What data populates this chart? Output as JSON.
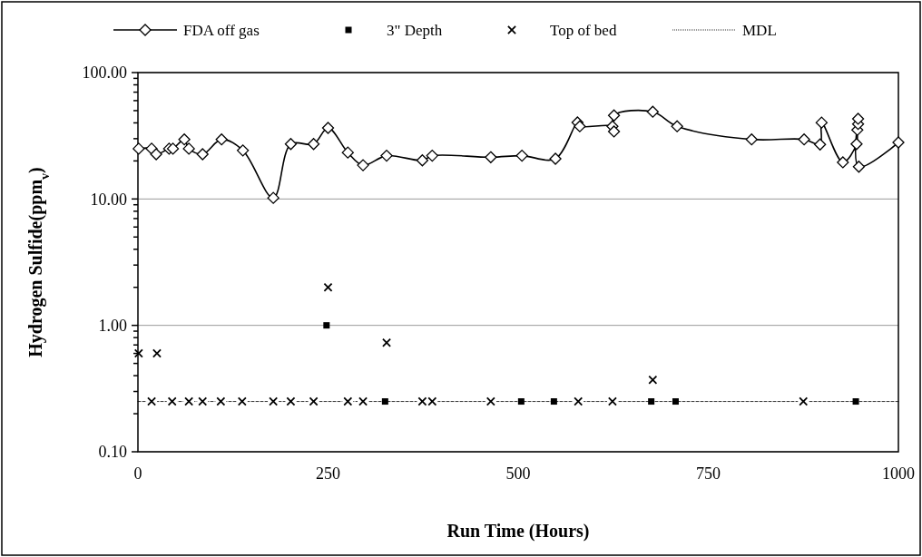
{
  "chart_data": {
    "type": "scatter",
    "xlabel": "Run Time (Hours)",
    "ylabel": "Hydrogen Sulfide(ppm$_{v}$)",
    "log": "y",
    "grid": "y",
    "legend": "top",
    "xlim": [
      0,
      1000
    ],
    "xticks": [
      0,
      250,
      500,
      750,
      1000
    ],
    "ylim": [
      0.1,
      100
    ],
    "yticks": [
      {
        "value": 0.1,
        "label": "0.10"
      },
      {
        "value": 0.2,
        "label": null
      },
      {
        "value": 0.3,
        "label": null
      },
      {
        "value": 0.4,
        "label": null
      },
      {
        "value": 0.5,
        "label": null
      },
      {
        "value": 0.6,
        "label": null
      },
      {
        "value": 0.7,
        "label": null
      },
      {
        "value": 0.8,
        "label": null
      },
      {
        "value": 0.9,
        "label": null
      },
      {
        "value": 1,
        "label": "1.00"
      },
      {
        "value": 2,
        "label": null
      },
      {
        "value": 3,
        "label": null
      },
      {
        "value": 4,
        "label": null
      },
      {
        "value": 5,
        "label": null
      },
      {
        "value": 6,
        "label": null
      },
      {
        "value": 7,
        "label": null
      },
      {
        "value": 8,
        "label": null
      },
      {
        "value": 9,
        "label": null
      },
      {
        "value": 10,
        "label": "10.00"
      },
      {
        "value": 20,
        "label": null
      },
      {
        "value": 30,
        "label": null
      },
      {
        "value": 40,
        "label": null
      },
      {
        "value": 50,
        "label": null
      },
      {
        "value": 60,
        "label": null
      },
      {
        "value": 70,
        "label": null
      },
      {
        "value": 80,
        "label": null
      },
      {
        "value": 90,
        "label": null
      },
      {
        "value": 100,
        "label": "100.00"
      }
    ],
    "series": [
      {
        "name": "FDA off gas",
        "type": "line",
        "marker": "diamond",
        "line_style": "solid",
        "color": "#000000",
        "x": [
          1,
          18,
          24,
          41,
          46,
          61,
          67,
          85,
          110,
          138,
          178,
          201,
          231,
          250,
          276,
          296,
          327,
          374,
          387,
          464,
          505,
          549,
          578,
          581,
          624,
          626,
          626,
          677,
          709,
          807,
          876,
          897,
          899,
          927,
          945,
          946,
          947,
          947,
          948,
          1000
        ],
        "values": [
          25,
          25,
          22.6,
          25,
          25,
          29.6,
          25,
          22.6,
          29.6,
          24.2,
          10.2,
          27.2,
          27.2,
          36.5,
          23.3,
          18.5,
          22,
          20.2,
          22,
          21.4,
          22,
          20.8,
          40.3,
          37.6,
          37.6,
          34.2,
          45.8,
          49,
          37.6,
          29.6,
          29.6,
          27,
          40.2,
          19.5,
          27.2,
          35.2,
          39.2,
          43.1,
          18,
          28
        ]
      },
      {
        "name": "3\" Depth",
        "marker": "square",
        "color": "#000000",
        "x": [
          248,
          325,
          504,
          547,
          675,
          707,
          944
        ],
        "values": [
          1.0,
          0.25,
          0.25,
          0.25,
          0.25,
          0.25,
          0.25
        ]
      },
      {
        "name": "Top of bed",
        "marker": "cross",
        "color": "#000000",
        "x": [
          1,
          25,
          18,
          45,
          67,
          85,
          109,
          137,
          178,
          201,
          231,
          250,
          276,
          296,
          327,
          374,
          387,
          464,
          579,
          624,
          677,
          875
        ],
        "values": [
          0.6,
          0.6,
          0.25,
          0.25,
          0.25,
          0.25,
          0.25,
          0.25,
          0.25,
          0.25,
          0.25,
          2,
          0.25,
          0.25,
          0.73,
          0.25,
          0.25,
          0.25,
          0.25,
          0.25,
          0.37,
          0.25
        ]
      },
      {
        "name": "MDL",
        "type": "line",
        "marker": "none",
        "line_style": "dashed",
        "color": "#000000",
        "x": [
          0,
          1000
        ],
        "values": [
          0.25,
          0.25
        ]
      }
    ]
  }
}
